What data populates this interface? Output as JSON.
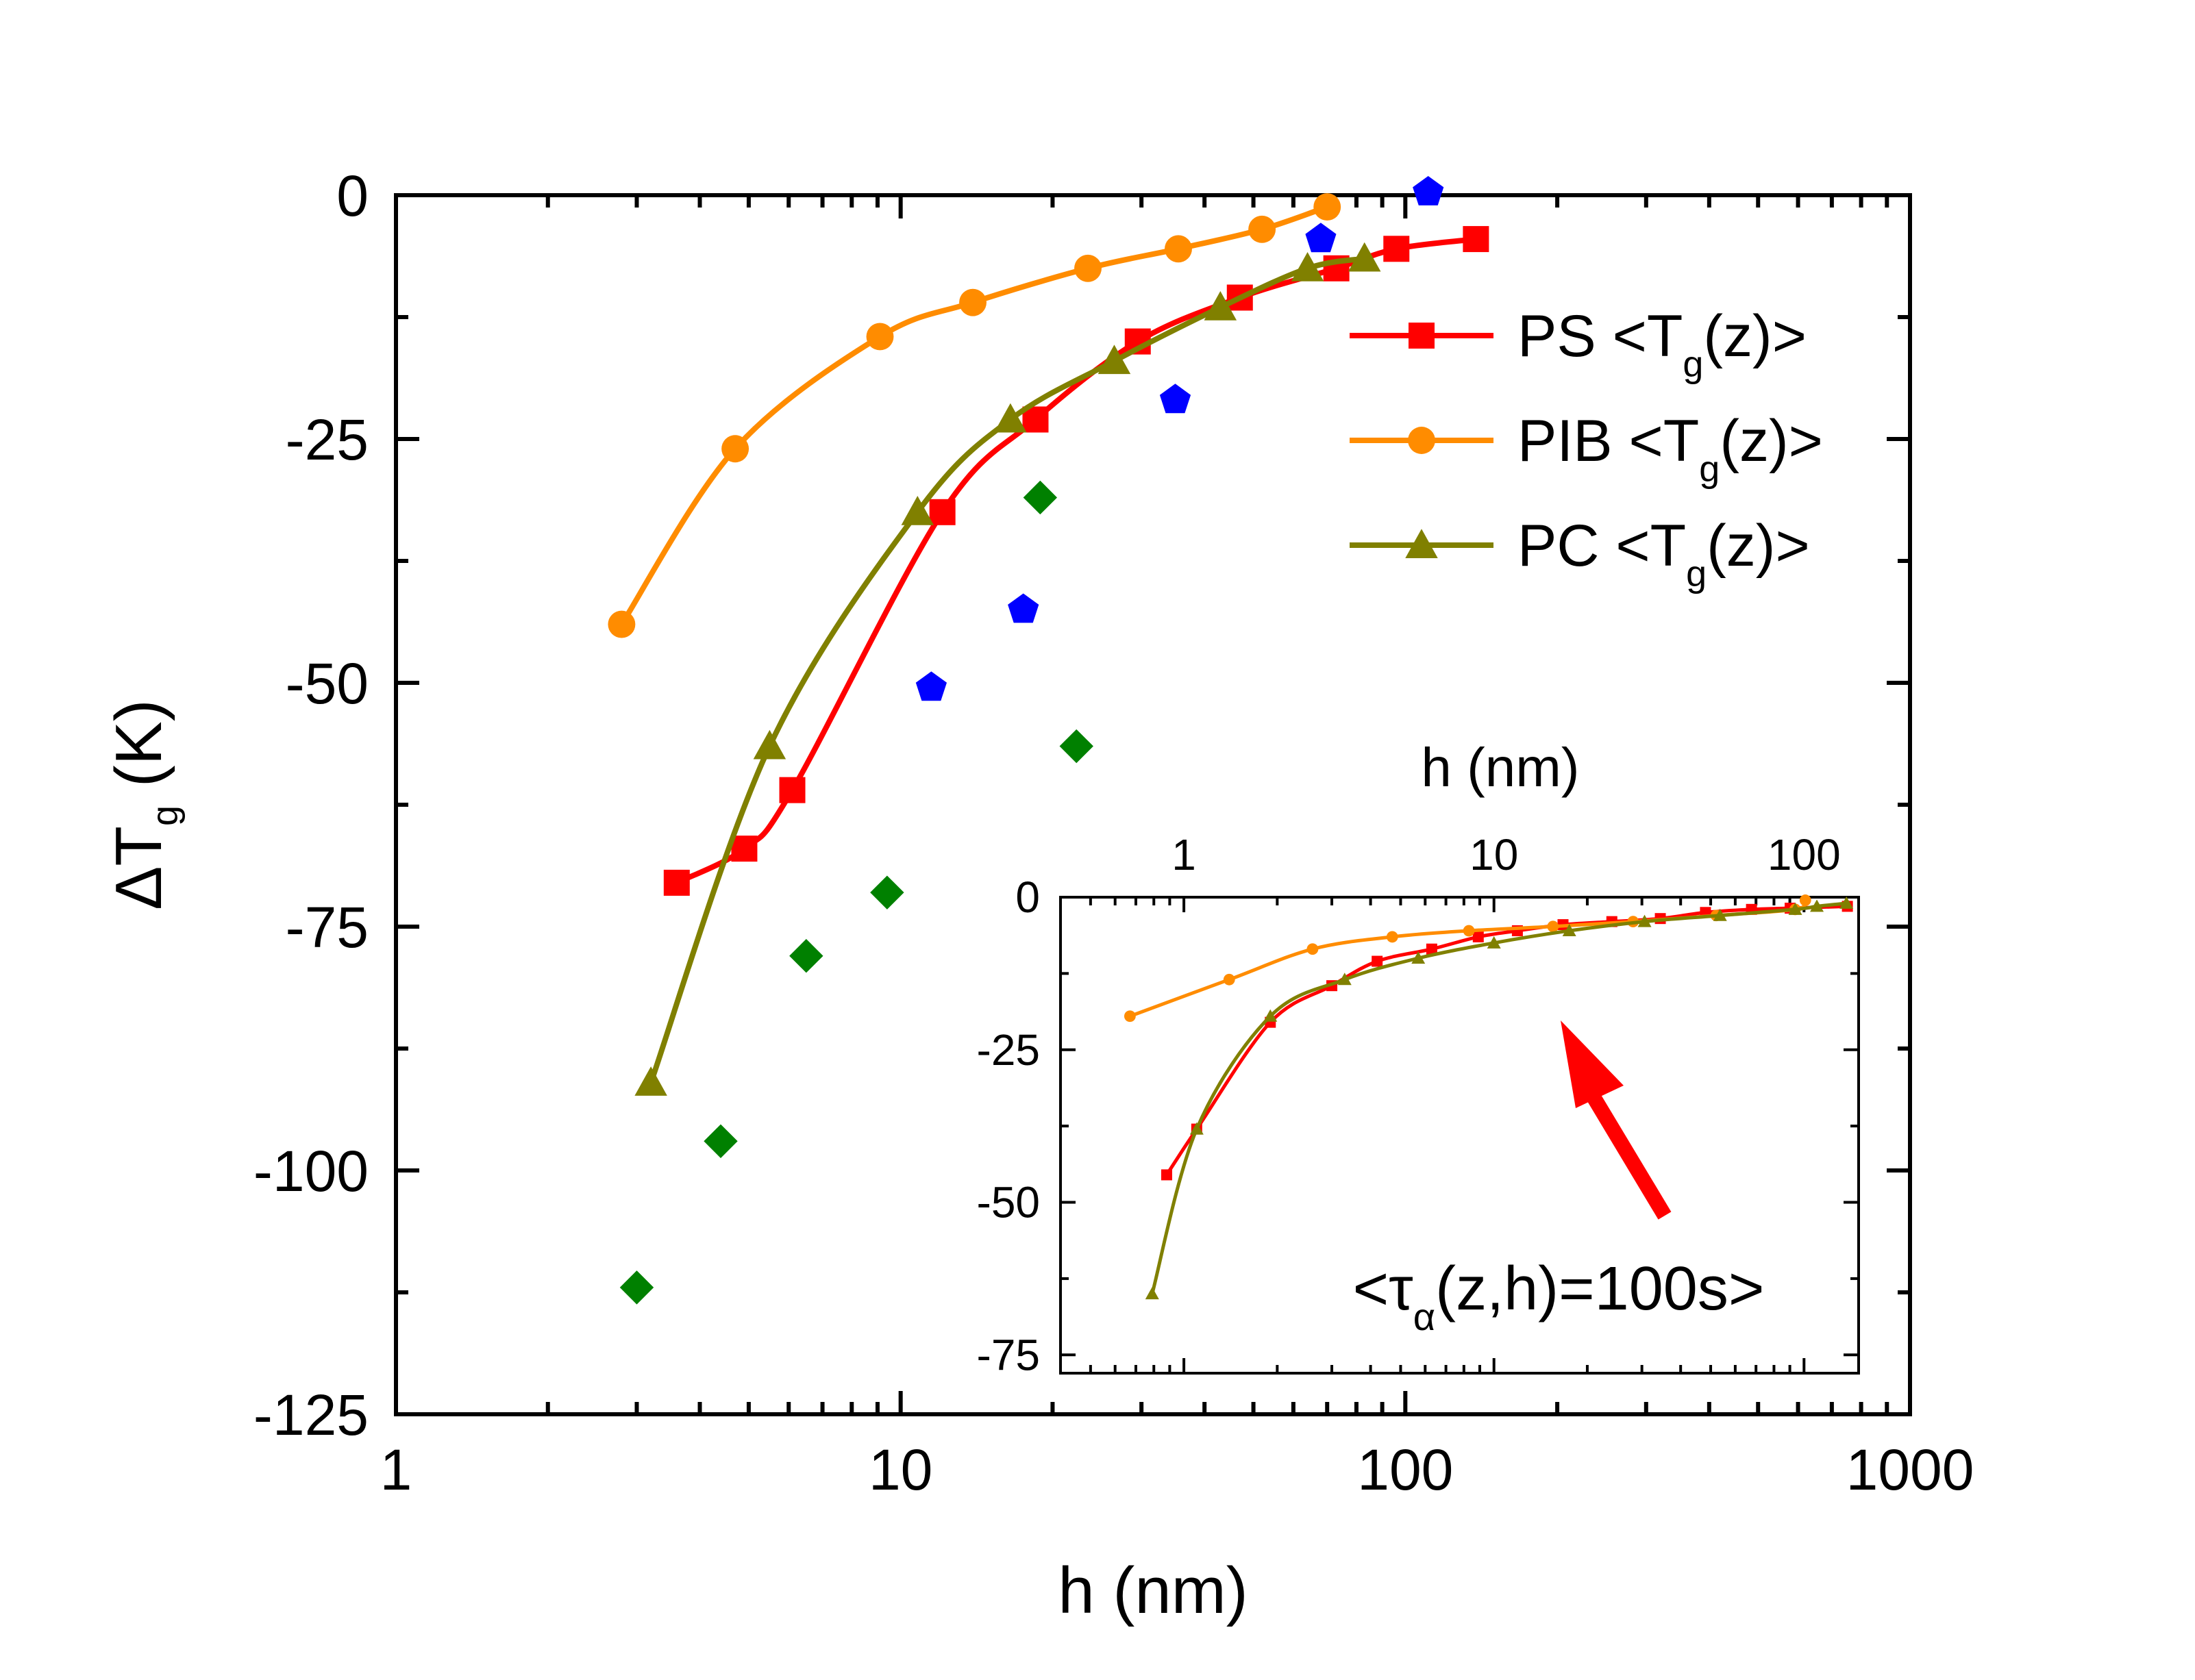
{
  "chart_data": [
    {
      "type": "line",
      "panel": "main",
      "xscale": "log",
      "xlim": [
        1,
        1000
      ],
      "ylim": [
        -125,
        0
      ],
      "xlabel": "h (nm)",
      "ylabel": {
        "main": "ΔT",
        "sub": "g",
        "rest": " (K)"
      },
      "xticks": [
        1,
        10,
        100,
        1000
      ],
      "xtick_labels": [
        "1",
        "10",
        "100",
        "1000"
      ],
      "yticks": [
        0,
        -25,
        -50,
        -75,
        -100,
        -125
      ],
      "ytick_labels": [
        "0",
        "-25",
        "-50",
        "-75",
        "-100",
        "-125"
      ],
      "legend_position": "top-right",
      "series": [
        {
          "name": "PS <Tg(z)>",
          "legend": {
            "pre": "PS <T",
            "sub": "g",
            "post": "(z)>"
          },
          "color": "#ff0000",
          "marker": "square",
          "x": [
            3.6,
            4.9,
            6.1,
            12.1,
            18.5,
            29.5,
            47,
            73,
            96,
            138
          ],
          "y": [
            -70.5,
            -67,
            -61,
            -32.5,
            -23,
            -15,
            -10.5,
            -7.5,
            -5.5,
            -4.5
          ]
        },
        {
          "name": "PIB <Tg(z)>",
          "legend": {
            "pre": "PIB <T",
            "sub": "g",
            "post": "(z)>"
          },
          "color": "#ff8c00",
          "marker": "circle",
          "x": [
            2.8,
            4.7,
            9.1,
            13.9,
            23.5,
            35.5,
            52,
            70
          ],
          "y": [
            -44,
            -26,
            -14.5,
            -11,
            -7.5,
            -5.5,
            -3.5,
            -1.2
          ]
        },
        {
          "name": "PC <Tg(z)>",
          "legend": {
            "pre": "PC <T",
            "sub": "g",
            "post": "(z)>"
          },
          "color": "#808000",
          "marker": "triangle",
          "x": [
            3.2,
            5.5,
            10.8,
            16.5,
            26.5,
            43,
            64,
            83
          ],
          "y": [
            -91,
            -56.5,
            -32.5,
            -23,
            -17,
            -11.5,
            -7.5,
            -6.5
          ]
        },
        {
          "name": "blue pentagons",
          "color": "#0000ff",
          "marker": "pentagon",
          "line": false,
          "x": [
            11.5,
            17.5,
            35,
            68,
            111
          ],
          "y": [
            -50.5,
            -42.5,
            -21,
            -4.5,
            0.3
          ]
        },
        {
          "name": "green diamonds",
          "color": "#008000",
          "marker": "diamond",
          "line": false,
          "x": [
            3.0,
            4.4,
            6.5,
            9.4,
            18.9,
            22.3
          ],
          "y": [
            -112,
            -97,
            -78,
            -71.5,
            -31,
            -56.5
          ]
        }
      ]
    },
    {
      "type": "line",
      "panel": "inset",
      "xscale": "log",
      "xlim": [
        0.4,
        150
      ],
      "ylim": [
        -78,
        0
      ],
      "xlabel": "h (nm)",
      "xaxis_position": "top",
      "xticks": [
        1,
        10,
        100
      ],
      "xtick_labels": [
        "1",
        "10",
        "100"
      ],
      "yticks": [
        0,
        -25,
        -50,
        -75
      ],
      "ytick_labels": [
        "0",
        "-25",
        "-50",
        "-75"
      ],
      "annotation": {
        "pre": "<τ",
        "sub": "α",
        "post": "(z,h)=100s>",
        "arrow_color": "#ff0000"
      },
      "series": [
        {
          "name": "PS",
          "color": "#ff0000",
          "marker": "square",
          "x": [
            0.88,
            1.1,
            1.9,
            3.0,
            4.2,
            6.3,
            8.9,
            11.9,
            16.7,
            24.0,
            34.4,
            48.1,
            67.7,
            90.2,
            138
          ],
          "y": [
            -45.5,
            -38,
            -20.5,
            -14.5,
            -10.5,
            -8.5,
            -6.5,
            -5.5,
            -4.5,
            -4.0,
            -3.5,
            -2.5,
            -2.0,
            -1.8,
            -1.5
          ]
        },
        {
          "name": "PIB",
          "color": "#ff8c00",
          "marker": "circle",
          "x": [
            0.67,
            1.4,
            2.6,
            4.7,
            8.3,
            15.5,
            28.1,
            52.1,
            93.6,
            101
          ],
          "y": [
            -19.5,
            -13.5,
            -8.5,
            -6.5,
            -5.5,
            -4.8,
            -4.0,
            -3.0,
            -2.0,
            -0.5
          ]
        },
        {
          "name": "PC",
          "color": "#808000",
          "marker": "triangle",
          "x": [
            0.79,
            1.1,
            1.9,
            3.3,
            5.7,
            10.0,
            17.5,
            30.6,
            53.6,
            93.7,
            110,
            137
          ],
          "y": [
            -65,
            -38,
            -19.5,
            -13.5,
            -10.0,
            -7.5,
            -5.5,
            -4.0,
            -3.0,
            -2.0,
            -1.5,
            -1.0
          ]
        }
      ]
    }
  ]
}
